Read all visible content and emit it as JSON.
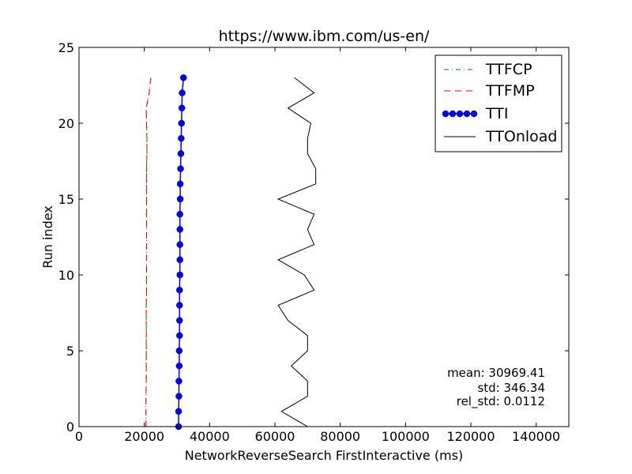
{
  "chart_data": {
    "type": "line",
    "title": "https://www.ibm.com/us-en/",
    "xlabel": "NetworkReverseSearch FirstInteractive (ms)",
    "ylabel": "Run index",
    "xlim": [
      0,
      150000
    ],
    "ylim": [
      0,
      25
    ],
    "xticks": [
      0,
      20000,
      40000,
      60000,
      80000,
      100000,
      120000,
      140000
    ],
    "yticks": [
      0,
      5,
      10,
      15,
      20,
      25
    ],
    "grid": false,
    "legend_position": "top-right",
    "series": [
      {
        "name": "TTFCP",
        "color": "#008000",
        "style": "dash-dot",
        "x": [
          20500,
          20500,
          20500,
          20600,
          20600,
          20600,
          20600,
          20600,
          20600,
          20700,
          20700,
          20700,
          20700,
          20700,
          20700,
          20700,
          20700,
          20700,
          20800,
          20800,
          20700,
          20600,
          21500,
          22000
        ],
        "y": [
          0,
          1,
          2,
          3,
          4,
          5,
          6,
          7,
          8,
          9,
          10,
          11,
          12,
          13,
          14,
          15,
          16,
          17,
          18,
          19,
          20,
          21,
          22,
          23
        ]
      },
      {
        "name": "TTFMP",
        "color": "#ff0000",
        "style": "dashed",
        "x": [
          20500,
          20500,
          20500,
          20600,
          20600,
          20600,
          20600,
          20600,
          20600,
          20700,
          20700,
          20700,
          20700,
          20700,
          20700,
          20700,
          20700,
          20700,
          20800,
          20800,
          20700,
          20600,
          21500,
          22000
        ],
        "y": [
          0,
          1,
          2,
          3,
          4,
          5,
          6,
          7,
          8,
          9,
          10,
          11,
          12,
          13,
          14,
          15,
          16,
          17,
          18,
          19,
          20,
          21,
          22,
          23
        ]
      },
      {
        "name": "TTI",
        "color": "#0000ff",
        "style": "solid-markers",
        "x": [
          30500,
          30500,
          30600,
          30600,
          30700,
          30700,
          30800,
          30800,
          30800,
          30800,
          30900,
          30900,
          30900,
          30900,
          30900,
          31000,
          31000,
          31100,
          31200,
          31300,
          31400,
          31500,
          31600,
          32000
        ],
        "y": [
          0,
          1,
          2,
          3,
          4,
          5,
          6,
          7,
          8,
          9,
          10,
          11,
          12,
          13,
          14,
          15,
          16,
          17,
          18,
          19,
          20,
          21,
          22,
          23
        ]
      },
      {
        "name": "TTOnload",
        "color": "#000000",
        "style": "solid",
        "x": [
          70000,
          62000,
          70000,
          70000,
          65000,
          70000,
          70000,
          64000,
          61000,
          72000,
          69000,
          61000,
          72000,
          70000,
          72000,
          61000,
          72500,
          72500,
          70000,
          70000,
          71000,
          64000,
          72000,
          66000
        ],
        "y": [
          0,
          1,
          2,
          3,
          4,
          5,
          6,
          7,
          8,
          9,
          10,
          11,
          12,
          13,
          14,
          15,
          16,
          17,
          18,
          19,
          20,
          21,
          22,
          23
        ]
      }
    ],
    "annotations": [
      "mean: 30969.41",
      "std: 346.34",
      "rel_std: 0.0112"
    ]
  }
}
